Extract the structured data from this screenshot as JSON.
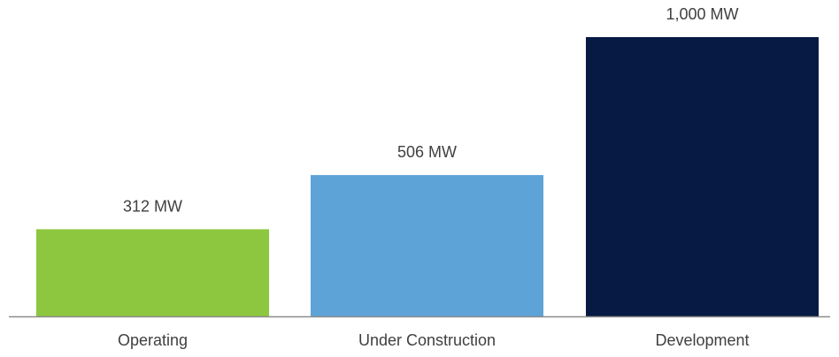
{
  "chart_data": {
    "type": "bar",
    "categories": [
      "Operating",
      "Under Construction",
      "Development"
    ],
    "values": [
      312,
      506,
      1000
    ],
    "data_labels": [
      "312 MW",
      "506 MW",
      "1,000 MW"
    ],
    "unit": "MW",
    "colors": [
      "#8DC63F",
      "#5DA3D8",
      "#061A43"
    ],
    "axis_color": "#8C8C8C",
    "ylim": [
      0,
      1000
    ],
    "title": "",
    "xlabel": "",
    "ylabel": "",
    "grid": false,
    "legend": "none"
  }
}
